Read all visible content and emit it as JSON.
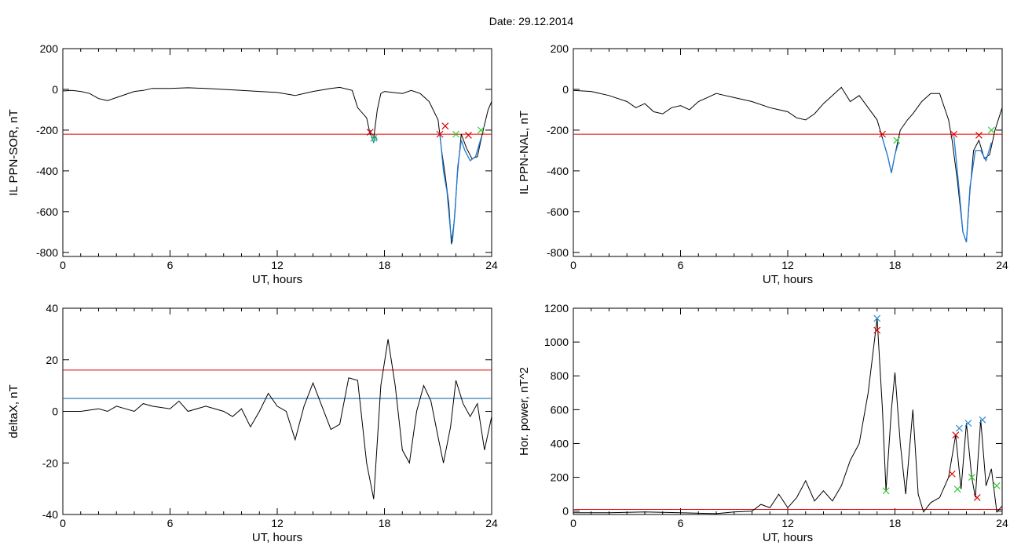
{
  "page_title": "Date:  29.12.2014",
  "colors": {
    "trace": "#000000",
    "threshold_red": "#e00000",
    "threshold_blue": "#1e6fa8",
    "interval_blue": "#1f7ad6",
    "mark_red": "#e00000",
    "mark_green": "#33cc33",
    "mark_blue": "#2a8fd8"
  },
  "chart_data": [
    {
      "type": "line",
      "title": "",
      "xlabel": "UT, hours",
      "ylabel": "IL PPN-SOR, nT",
      "xlim": [
        0,
        24
      ],
      "ylim": [
        -820,
        200
      ],
      "x_ticks": [
        "0",
        "6",
        "12",
        "18",
        "24"
      ],
      "y_ticks": [
        "200",
        "0",
        "-200",
        "-400",
        "-600",
        "-800"
      ],
      "grid": false,
      "series": [
        {
          "values_xy": [
            [
              0,
              -8
            ],
            [
              0.5,
              -5
            ],
            [
              1,
              -10
            ],
            [
              1.5,
              -20
            ],
            [
              2,
              -45
            ],
            [
              2.5,
              -55
            ],
            [
              3,
              -40
            ],
            [
              3.5,
              -25
            ],
            [
              4,
              -10
            ],
            [
              4.5,
              -5
            ],
            [
              5,
              5
            ],
            [
              6,
              5
            ],
            [
              7,
              8
            ],
            [
              8,
              5
            ],
            [
              9,
              0
            ],
            [
              10,
              -5
            ],
            [
              11,
              -10
            ],
            [
              12,
              -15
            ],
            [
              13,
              -30
            ],
            [
              14,
              -10
            ],
            [
              15,
              5
            ],
            [
              15.5,
              10
            ],
            [
              16.2,
              -5
            ],
            [
              16.5,
              -90
            ],
            [
              17,
              -140
            ],
            [
              17.2,
              -220
            ],
            [
              17.4,
              -240
            ],
            [
              17.6,
              -100
            ],
            [
              17.8,
              -20
            ],
            [
              18,
              -10
            ],
            [
              19,
              -20
            ],
            [
              19.5,
              -5
            ],
            [
              20,
              -20
            ],
            [
              20.5,
              -60
            ],
            [
              21,
              -150
            ],
            [
              21.2,
              -300
            ],
            [
              21.4,
              -420
            ],
            [
              21.6,
              -560
            ],
            [
              21.75,
              -760
            ],
            [
              21.9,
              -650
            ],
            [
              22.1,
              -400
            ],
            [
              22.3,
              -220
            ],
            [
              22.6,
              -290
            ],
            [
              22.9,
              -340
            ],
            [
              23.2,
              -330
            ],
            [
              23.5,
              -210
            ],
            [
              23.8,
              -100
            ],
            [
              24,
              -60
            ]
          ]
        }
      ],
      "threshold": -220,
      "interval_xy": [
        [
          17.2,
          -200
        ],
        [
          17.3,
          -240
        ],
        [
          17.4,
          -260
        ],
        [
          17.5,
          -230
        ],
        [
          17.6,
          -250
        ]
      ],
      "interval2_xy": [
        [
          21.1,
          -210
        ],
        [
          21.3,
          -400
        ],
        [
          21.5,
          -500
        ],
        [
          21.7,
          -700
        ],
        [
          21.8,
          -750
        ],
        [
          21.95,
          -600
        ],
        [
          22.1,
          -380
        ],
        [
          22.3,
          -250
        ],
        [
          22.5,
          -300
        ],
        [
          22.8,
          -350
        ],
        [
          23.1,
          -330
        ],
        [
          23.4,
          -240
        ]
      ],
      "markers_red": [
        [
          17.2,
          -210
        ],
        [
          21.1,
          -220
        ],
        [
          21.4,
          -180
        ],
        [
          22.7,
          -225
        ]
      ],
      "markers_green": [
        [
          17.4,
          -240
        ],
        [
          22.0,
          -220
        ],
        [
          23.4,
          -200
        ]
      ]
    },
    {
      "type": "line",
      "title": "",
      "xlabel": "UT, hours",
      "ylabel": "IL PPN-NAL, nT",
      "xlim": [
        0,
        24
      ],
      "ylim": [
        -820,
        200
      ],
      "x_ticks": [
        "0",
        "6",
        "12",
        "18",
        "24"
      ],
      "y_ticks": [
        "200",
        "0",
        "-200",
        "-400",
        "-600",
        "-800"
      ],
      "grid": false,
      "series": [
        {
          "values_xy": [
            [
              0,
              -5
            ],
            [
              1,
              -10
            ],
            [
              2,
              -30
            ],
            [
              3,
              -60
            ],
            [
              3.5,
              -90
            ],
            [
              4,
              -70
            ],
            [
              4.5,
              -110
            ],
            [
              5,
              -120
            ],
            [
              5.5,
              -90
            ],
            [
              6,
              -80
            ],
            [
              6.5,
              -100
            ],
            [
              7,
              -60
            ],
            [
              7.5,
              -40
            ],
            [
              8,
              -20
            ],
            [
              8.5,
              -30
            ],
            [
              9,
              -40
            ],
            [
              10,
              -60
            ],
            [
              11,
              -90
            ],
            [
              11.5,
              -100
            ],
            [
              12,
              -110
            ],
            [
              12.5,
              -140
            ],
            [
              13,
              -150
            ],
            [
              13.5,
              -120
            ],
            [
              14,
              -70
            ],
            [
              14.5,
              -30
            ],
            [
              15,
              10
            ],
            [
              15.5,
              -60
            ],
            [
              16,
              -30
            ],
            [
              16.5,
              -90
            ],
            [
              17,
              -150
            ],
            [
              17.3,
              -240
            ],
            [
              17.6,
              -330
            ],
            [
              17.8,
              -410
            ],
            [
              18,
              -320
            ],
            [
              18.3,
              -200
            ],
            [
              18.7,
              -150
            ],
            [
              19,
              -120
            ],
            [
              19.5,
              -60
            ],
            [
              20,
              -20
            ],
            [
              20.5,
              -20
            ],
            [
              21,
              -150
            ],
            [
              21.2,
              -250
            ],
            [
              21.5,
              -450
            ],
            [
              21.8,
              -700
            ],
            [
              22,
              -750
            ],
            [
              22.2,
              -500
            ],
            [
              22.4,
              -300
            ],
            [
              22.7,
              -250
            ],
            [
              23,
              -340
            ],
            [
              23.3,
              -320
            ],
            [
              23.6,
              -200
            ],
            [
              24,
              -90
            ]
          ]
        }
      ],
      "threshold": -220,
      "interval_xy": [
        [
          17.3,
          -240
        ],
        [
          17.6,
          -330
        ],
        [
          17.8,
          -410
        ],
        [
          18,
          -320
        ],
        [
          18.2,
          -260
        ]
      ],
      "interval2_xy": [
        [
          21.3,
          -230
        ],
        [
          21.6,
          -500
        ],
        [
          21.8,
          -700
        ],
        [
          22,
          -750
        ],
        [
          22.2,
          -480
        ],
        [
          22.5,
          -300
        ],
        [
          22.8,
          -300
        ],
        [
          23.1,
          -350
        ],
        [
          23.4,
          -260
        ]
      ],
      "markers_red": [
        [
          17.3,
          -220
        ],
        [
          21.3,
          -220
        ],
        [
          22.7,
          -225
        ]
      ],
      "markers_green": [
        [
          18.1,
          -250
        ],
        [
          23.4,
          -200
        ]
      ]
    },
    {
      "type": "line",
      "title": "",
      "xlabel": "UT, hours",
      "ylabel": "deltaX, nT",
      "xlim": [
        0,
        24
      ],
      "ylim": [
        -40,
        40
      ],
      "x_ticks": [
        "0",
        "6",
        "12",
        "18",
        "24"
      ],
      "y_ticks": [
        "40",
        "20",
        "0",
        "-20",
        "-40"
      ],
      "grid": false,
      "series": [
        {
          "values_xy": [
            [
              0,
              0
            ],
            [
              1,
              0
            ],
            [
              2,
              1
            ],
            [
              2.5,
              0
            ],
            [
              3,
              2
            ],
            [
              3.5,
              1
            ],
            [
              4,
              0
            ],
            [
              4.5,
              3
            ],
            [
              5,
              2
            ],
            [
              6,
              1
            ],
            [
              6.5,
              4
            ],
            [
              7,
              0
            ],
            [
              8,
              2
            ],
            [
              9,
              0
            ],
            [
              9.5,
              -2
            ],
            [
              10,
              1
            ],
            [
              10.5,
              -6
            ],
            [
              11,
              0
            ],
            [
              11.5,
              7
            ],
            [
              12,
              2
            ],
            [
              12.5,
              0
            ],
            [
              13,
              -11
            ],
            [
              13.5,
              2
            ],
            [
              14,
              11
            ],
            [
              14.5,
              2
            ],
            [
              15,
              -7
            ],
            [
              15.5,
              -5
            ],
            [
              16,
              13
            ],
            [
              16.5,
              12
            ],
            [
              17,
              -20
            ],
            [
              17.4,
              -34
            ],
            [
              17.8,
              10
            ],
            [
              18.2,
              28
            ],
            [
              18.6,
              10
            ],
            [
              19,
              -15
            ],
            [
              19.4,
              -20
            ],
            [
              19.8,
              0
            ],
            [
              20.2,
              10
            ],
            [
              20.6,
              4
            ],
            [
              21,
              -10
            ],
            [
              21.3,
              -20
            ],
            [
              21.7,
              -6
            ],
            [
              22,
              12
            ],
            [
              22.4,
              3
            ],
            [
              22.8,
              -2
            ],
            [
              23.2,
              3
            ],
            [
              23.6,
              -15
            ],
            [
              24,
              -2
            ]
          ]
        }
      ],
      "threshold": 16,
      "threshold2": 5,
      "markers_red": [],
      "markers_green": []
    },
    {
      "type": "line",
      "title": "",
      "xlabel": "UT, hours",
      "ylabel": "Hor. power, nT^2",
      "xlim": [
        0,
        24
      ],
      "ylim": [
        -20,
        1200
      ],
      "x_ticks": [
        "0",
        "6",
        "12",
        "18",
        "24"
      ],
      "y_ticks": [
        "1200",
        "1000",
        "800",
        "600",
        "400",
        "200",
        "0"
      ],
      "grid": false,
      "series": [
        {
          "values_xy": [
            [
              0,
              -10
            ],
            [
              2,
              -10
            ],
            [
              4,
              -5
            ],
            [
              6,
              -10
            ],
            [
              8,
              -15
            ],
            [
              9,
              -5
            ],
            [
              10,
              0
            ],
            [
              10.5,
              40
            ],
            [
              11,
              20
            ],
            [
              11.5,
              100
            ],
            [
              12,
              20
            ],
            [
              12.5,
              80
            ],
            [
              13,
              180
            ],
            [
              13.5,
              60
            ],
            [
              14,
              120
            ],
            [
              14.5,
              60
            ],
            [
              15,
              150
            ],
            [
              15.5,
              300
            ],
            [
              16,
              400
            ],
            [
              16.5,
              700
            ],
            [
              17,
              1140
            ],
            [
              17.3,
              600
            ],
            [
              17.5,
              120
            ],
            [
              17.8,
              600
            ],
            [
              18,
              820
            ],
            [
              18.3,
              400
            ],
            [
              18.6,
              100
            ],
            [
              19,
              600
            ],
            [
              19.3,
              100
            ],
            [
              19.6,
              -5
            ],
            [
              20,
              50
            ],
            [
              20.5,
              80
            ],
            [
              21,
              200
            ],
            [
              21.4,
              450
            ],
            [
              21.7,
              130
            ],
            [
              22,
              520
            ],
            [
              22.3,
              200
            ],
            [
              22.5,
              80
            ],
            [
              22.8,
              540
            ],
            [
              23.1,
              150
            ],
            [
              23.4,
              250
            ],
            [
              23.7,
              -5
            ],
            [
              24,
              30
            ]
          ]
        }
      ],
      "threshold": 10,
      "markers_red": [
        [
          17,
          1070
        ],
        [
          21.2,
          220
        ],
        [
          21.4,
          450
        ],
        [
          22.6,
          80
        ]
      ],
      "markers_green": [
        [
          17.5,
          120
        ],
        [
          21.5,
          130
        ],
        [
          22.3,
          200
        ],
        [
          23.7,
          150
        ]
      ],
      "markers_blue": [
        [
          17,
          1140
        ],
        [
          21.6,
          490
        ],
        [
          22.1,
          520
        ],
        [
          22.9,
          540
        ]
      ]
    }
  ]
}
